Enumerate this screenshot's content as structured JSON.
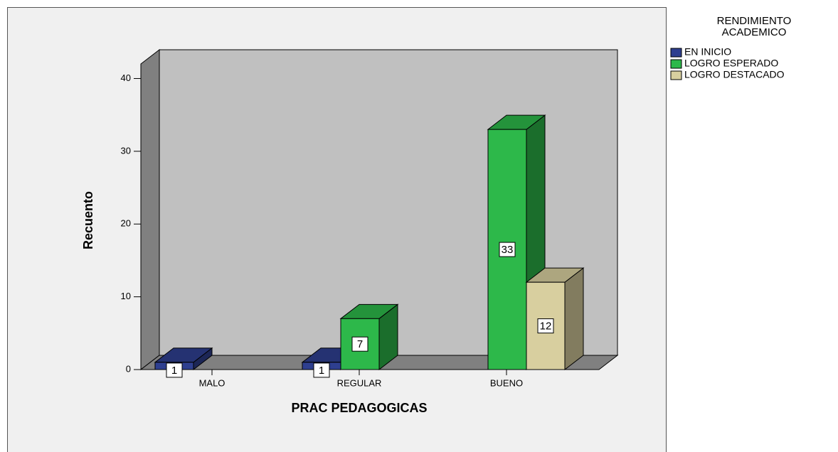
{
  "chart_data": {
    "type": "bar3d",
    "legend_title": [
      "RENDIMIENTO",
      "ACADEMICO"
    ],
    "xlabel": "PRAC PEDAGOGICAS",
    "ylabel": "Recuento",
    "categories": [
      "MALO",
      "REGULAR",
      "BUENO"
    ],
    "series": [
      {
        "name": "EN INICIO",
        "color": "#2e3f8f",
        "values": [
          1,
          1,
          null
        ]
      },
      {
        "name": "LOGRO ESPERADO",
        "color": "#2db84a",
        "values": [
          null,
          7,
          33
        ]
      },
      {
        "name": "LOGRO DESTACADO",
        "color": "#d8cf9f",
        "values": [
          null,
          null,
          12
        ]
      }
    ],
    "ylim": [
      0,
      42
    ],
    "yticks": [
      0,
      10,
      20,
      30,
      40
    ],
    "legend": "right"
  }
}
